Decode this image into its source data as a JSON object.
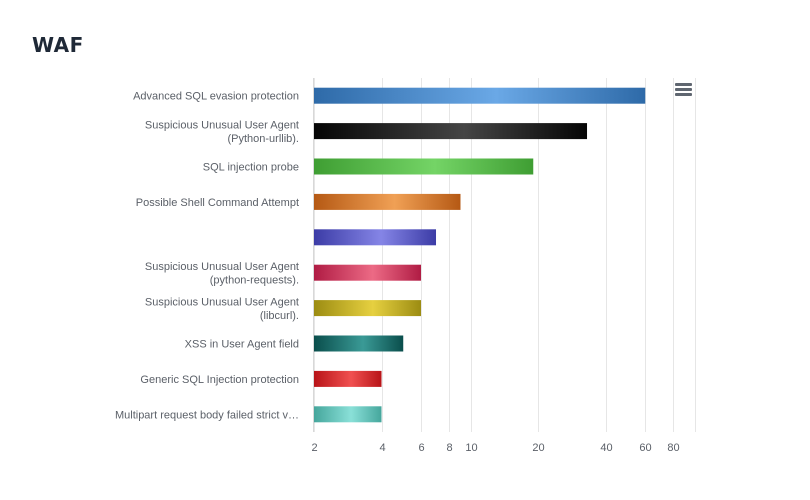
{
  "title": "WAF",
  "menu_icon": "hamburger-menu-icon",
  "chart_data": {
    "type": "bar",
    "orientation": "horizontal",
    "x_scale": "log",
    "xlim": [
      2,
      100
    ],
    "grid": true,
    "legend": "none",
    "x_ticks": [
      2,
      4,
      6,
      8,
      10,
      20,
      40,
      60,
      80
    ],
    "x_tick_labels": [
      "2",
      "4",
      "6",
      "8",
      "10",
      "20",
      "40",
      "60",
      "80"
    ],
    "categories": [
      [
        "Advanced SQL evasion protection"
      ],
      [
        "Suspicious Unusual User Agent",
        "(Python-urllib)."
      ],
      [
        "SQL injection probe"
      ],
      [
        "Possible Shell Command Attempt"
      ],
      [
        ""
      ],
      [
        "Suspicious Unusual User Agent",
        "(python-requests)."
      ],
      [
        "Suspicious Unusual User Agent",
        "(libcurl)."
      ],
      [
        "XSS in User Agent field"
      ],
      [
        "Generic SQL Injection protection"
      ],
      [
        "Multipart request body failed strict v…"
      ]
    ],
    "values": [
      60,
      33,
      19,
      9,
      7,
      6,
      6,
      5,
      4,
      4
    ],
    "colors": [
      [
        "#2e6aa8",
        "#6aa8e6"
      ],
      [
        "#050505",
        "#454545"
      ],
      [
        "#3f9e33",
        "#74d466"
      ],
      [
        "#b55914",
        "#f0a055"
      ],
      [
        "#3c3ca6",
        "#8585e6"
      ],
      [
        "#b01c44",
        "#ec6a85"
      ],
      [
        "#9c8c12",
        "#e6d040"
      ],
      [
        "#0a4e4c",
        "#3a9a96"
      ],
      [
        "#b81418",
        "#f05050"
      ],
      [
        "#45a69c",
        "#8ae0d8"
      ]
    ]
  }
}
